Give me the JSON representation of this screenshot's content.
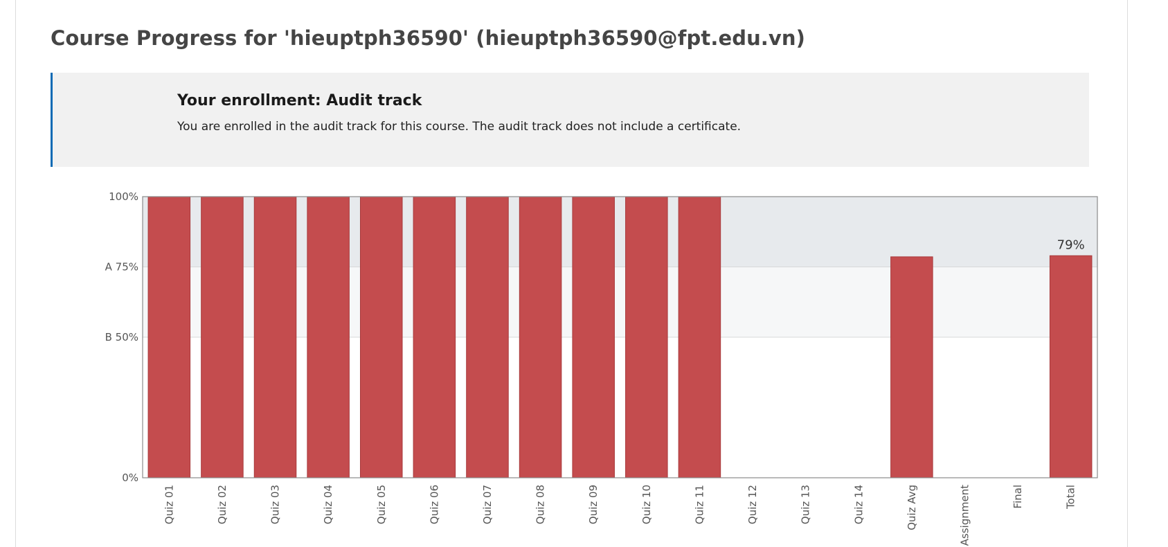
{
  "page": {
    "title": "Course Progress for 'hieuptph36590' (hieuptph36590@fpt.edu.vn)"
  },
  "enrollment": {
    "title": "Your enrollment: Audit track",
    "message": "You are enrolled in the audit track for this course. The audit track does not include a certificate."
  },
  "colors": {
    "bar": "#c44c4e",
    "bar_stroke": "#a83a3c",
    "accent": "#0d6bb5",
    "band_a": "#e7eaed",
    "band_b": "#f6f7f8"
  },
  "chart_data": {
    "type": "bar",
    "categories": [
      "Quiz 01",
      "Quiz 02",
      "Quiz 03",
      "Quiz 04",
      "Quiz 05",
      "Quiz 06",
      "Quiz 07",
      "Quiz 08",
      "Quiz 09",
      "Quiz 10",
      "Quiz 11",
      "Quiz 12",
      "Quiz 13",
      "Quiz 14",
      "Quiz Avg",
      "Assignment",
      "Final",
      "Total"
    ],
    "values": [
      100,
      100,
      100,
      100,
      100,
      100,
      100,
      100,
      100,
      100,
      100,
      0,
      0,
      0,
      78.6,
      0,
      0,
      79
    ],
    "ylim": [
      0,
      100
    ],
    "y_ticks": [
      {
        "value": 100,
        "label": "100%"
      },
      {
        "value": 75,
        "label": "A 75%"
      },
      {
        "value": 50,
        "label": "B 50%"
      },
      {
        "value": 0,
        "label": "0%"
      }
    ],
    "grade_bands": [
      {
        "grade": "A",
        "from": 75,
        "to": 100
      },
      {
        "grade": "B",
        "from": 50,
        "to": 75
      }
    ],
    "data_labels": [
      {
        "category": "Total",
        "label": "79%"
      }
    ]
  }
}
